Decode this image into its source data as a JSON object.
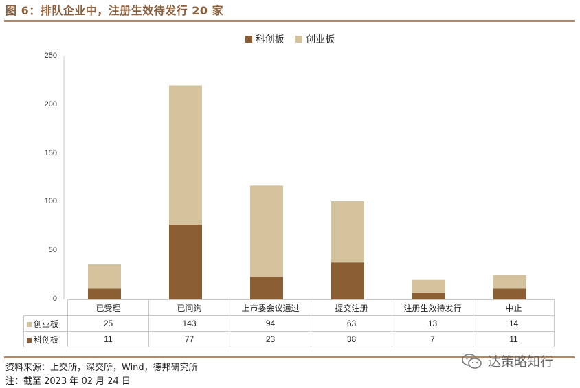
{
  "header": {
    "title": "图 6：排队企业中，注册生效待发行 20 家"
  },
  "colors": {
    "kechuang": "#8b5e34",
    "chuangye": "#d4c29d",
    "accent": "#b08a68"
  },
  "chart_data": {
    "type": "bar",
    "stacked": true,
    "categories": [
      "已受理",
      "已问询",
      "上市委会议通过",
      "提交注册",
      "注册生效待发行",
      "中止"
    ],
    "series": [
      {
        "name": "科创板",
        "values": [
          11,
          77,
          23,
          38,
          7,
          11
        ],
        "color": "#8b5e34"
      },
      {
        "name": "创业板",
        "values": [
          25,
          143,
          94,
          63,
          13,
          14
        ],
        "color": "#d4c29d"
      }
    ],
    "ylim": [
      0,
      250
    ],
    "yticks": [
      "0",
      "50",
      "100",
      "150",
      "200",
      "250"
    ],
    "legend_position": "top-center",
    "grid": false
  },
  "table": {
    "rows": [
      {
        "label": "创业板",
        "values": [
          "25",
          "143",
          "94",
          "63",
          "13",
          "14"
        ]
      },
      {
        "label": "科创板",
        "values": [
          "11",
          "77",
          "23",
          "38",
          "7",
          "11"
        ]
      }
    ]
  },
  "footer": {
    "source": "资料来源：上交所，深交所，Wind，德邦研究所",
    "note": "注：截至 2023 年 02 月 24 日"
  },
  "watermark": {
    "text": "达策略知行",
    "icon": "wechat-icon"
  }
}
